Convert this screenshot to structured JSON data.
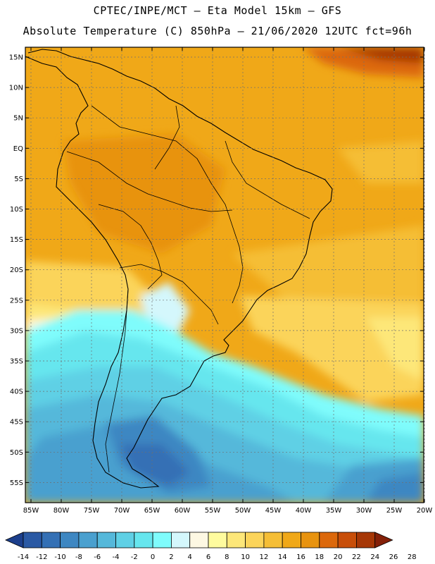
{
  "header": {
    "line1": "CPTEC/INPE/MCT –  Eta Model 15km – GFS",
    "line2": "Absolute Temperature (C) 850hPa – 21/06/2020 12UTC fct=96h"
  },
  "map": {
    "lat_labels": [
      "15N",
      "10N",
      "5N",
      "EQ",
      "5S",
      "10S",
      "15S",
      "20S",
      "25S",
      "30S",
      "35S",
      "40S",
      "45S",
      "50S",
      "55S"
    ],
    "lon_labels": [
      "85W",
      "80W",
      "75W",
      "70W",
      "65W",
      "60W",
      "55W",
      "50W",
      "45W",
      "40W",
      "35W",
      "30W",
      "25W",
      "20W"
    ]
  },
  "colorbar": {
    "labels": [
      "-14",
      "-12",
      "-10",
      "-8",
      "-6",
      "-4",
      "-2",
      "0",
      "2",
      "4",
      "6",
      "8",
      "10",
      "12",
      "14",
      "16",
      "18",
      "20",
      "22",
      "24",
      "26",
      "28"
    ],
    "colors": [
      "#1c3f8c",
      "#2a59a4",
      "#3470b5",
      "#3e87c2",
      "#4aa0cf",
      "#55b8da",
      "#5fd0e5",
      "#66e6ee",
      "#7ffcfc",
      "#d4f7fc",
      "#fdf8e3",
      "#fefb9e",
      "#fde779",
      "#fbd45a",
      "#f5be36",
      "#f0a818",
      "#e8930f",
      "#dc680b",
      "#c84e09",
      "#a63706",
      "#842008"
    ]
  }
}
